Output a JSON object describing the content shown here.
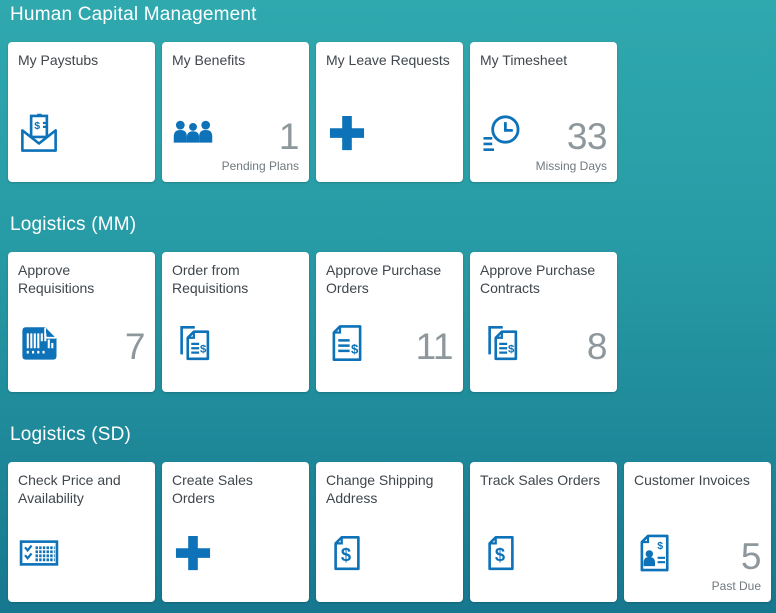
{
  "colors": {
    "background_top": "#2FA8AE",
    "background_bottom": "#16788F",
    "tile_background": "#FFFFFF",
    "icon_blue": "#0D72B8",
    "number_gray": "#8E979C",
    "subtitle_gray": "#6F797F",
    "title_gray": "#3F464C",
    "section_title_white": "#FFFFFF"
  },
  "sections": [
    {
      "title": "Human Capital Management",
      "tiles": [
        {
          "title": "My Paystubs",
          "icon": "paystub-icon",
          "number": "",
          "subtitle": ""
        },
        {
          "title": "My Benefits",
          "icon": "employee-group-icon",
          "number": "1",
          "subtitle": "Pending Plans"
        },
        {
          "title": "My Leave Requests",
          "icon": "plus-icon",
          "number": "",
          "subtitle": ""
        },
        {
          "title": "My Timesheet",
          "icon": "timesheet-clock-icon",
          "number": "33",
          "subtitle": "Missing Days"
        }
      ]
    },
    {
      "title": "Logistics (MM)",
      "tiles": [
        {
          "title": "Approve Requisitions",
          "icon": "barcode-document-icon",
          "number": "7",
          "subtitle": ""
        },
        {
          "title": "Order from Requisitions",
          "icon": "duplicate-sales-document-icon",
          "number": "",
          "subtitle": ""
        },
        {
          "title": "Approve Purchase Orders",
          "icon": "purchase-order-icon",
          "number": "11",
          "subtitle": ""
        },
        {
          "title": "Approve Purchase Contracts",
          "icon": "duplicate-sales-document-icon",
          "number": "8",
          "subtitle": ""
        }
      ]
    },
    {
      "title": "Logistics (SD)",
      "tiles": [
        {
          "title": "Check Price and Availability",
          "icon": "price-check-grid-icon",
          "number": "",
          "subtitle": ""
        },
        {
          "title": "Create Sales Orders",
          "icon": "plus-icon",
          "number": "",
          "subtitle": ""
        },
        {
          "title": "Change Shipping Address",
          "icon": "sales-document-icon",
          "number": "",
          "subtitle": ""
        },
        {
          "title": "Track Sales Orders",
          "icon": "sales-document-icon",
          "number": "",
          "subtitle": ""
        },
        {
          "title": "Customer Invoices",
          "icon": "customer-invoice-icon",
          "number": "5",
          "subtitle": "Past Due"
        }
      ]
    }
  ]
}
